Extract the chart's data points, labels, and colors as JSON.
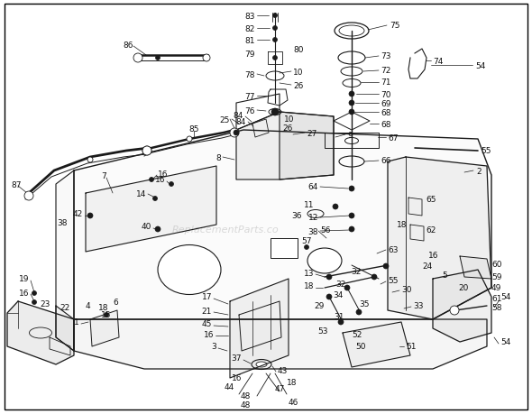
{
  "bg_color": "#ffffff",
  "border_color": "#000000",
  "line_color": "#1a1a1a",
  "text_color": "#111111",
  "watermark_text": "ReplacementParts.co",
  "watermark_color": "#cccccc",
  "figsize": [
    5.9,
    4.6
  ],
  "dpi": 100
}
